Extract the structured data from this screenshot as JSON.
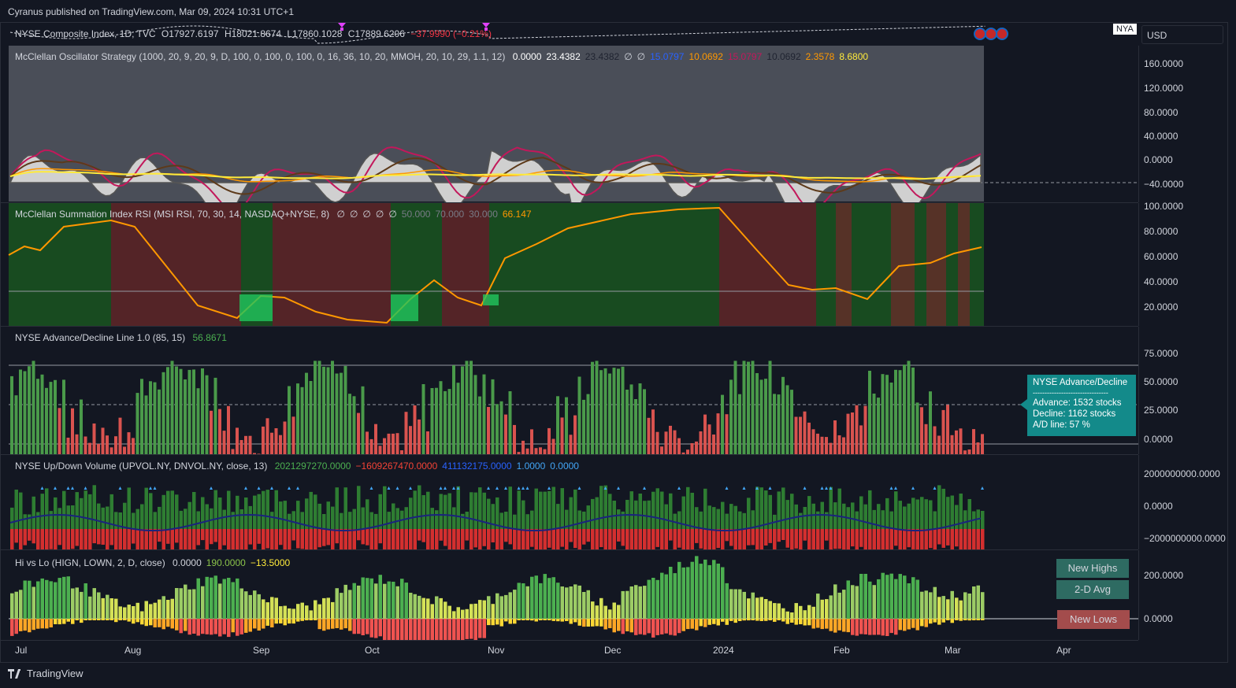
{
  "publisher": "Cyranus published on TradingView.com, Mar 09, 2024 10:31 UTC+1",
  "symbol_badge": "NYA",
  "currency": "USD",
  "main_legend": {
    "title": "NYSE Composite Index, 1D, TVC",
    "o": "O17927.6197",
    "h": "H18021.8674",
    "l": "L17860.1028",
    "c": "C17889.6206",
    "change": "−37.9990 (−0.21%)"
  },
  "panes": {
    "osc": {
      "label": "McClellan Oscillator Strategy (1000, 20, 9, 20, 9, D, 100, 0, 100, 0, 100, 0, 16, 36, 10, 20, MMOH, 20, 10, 29, 1.1, 12)",
      "values": [
        {
          "text": "0.0000",
          "color": "#ffffff"
        },
        {
          "text": "23.4382",
          "color": "#ffffff"
        },
        {
          "text": "23.4382",
          "color": "#1f2330"
        },
        {
          "text": "∅",
          "color": "#d1d4dc"
        },
        {
          "text": "∅",
          "color": "#d1d4dc"
        },
        {
          "text": "15.0797",
          "color": "#2962ff"
        },
        {
          "text": "10.0692",
          "color": "#ff9800"
        },
        {
          "text": "15.0797",
          "color": "#c2185b"
        },
        {
          "text": "10.0692",
          "color": "#1f2330"
        },
        {
          "text": "2.3578",
          "color": "#ff9800"
        },
        {
          "text": "8.6800",
          "color": "#ffeb3b"
        }
      ],
      "ticks": [
        "160.0000",
        "120.0000",
        "80.0000",
        "40.0000",
        "0.0000",
        "−40.0000"
      ]
    },
    "rsi": {
      "label": "McClellan Summation Index RSI (MSI RSI, 70, 30, 14, NASDAQ+NYSE, 8)",
      "values": [
        {
          "text": "∅",
          "color": "#d1d4dc"
        },
        {
          "text": "∅",
          "color": "#d1d4dc"
        },
        {
          "text": "∅",
          "color": "#d1d4dc"
        },
        {
          "text": "∅",
          "color": "#d1d4dc"
        },
        {
          "text": "∅",
          "color": "#d1d4dc"
        },
        {
          "text": "50.000",
          "color": "#787b86"
        },
        {
          "text": "70.000",
          "color": "#787b86"
        },
        {
          "text": "30.000",
          "color": "#787b86"
        },
        {
          "text": "66.147",
          "color": "#ff9800"
        }
      ],
      "ticks": [
        "100.0000",
        "80.0000",
        "60.0000",
        "40.0000",
        "20.0000"
      ]
    },
    "ad": {
      "label": "NYSE Advance/Decline Line 1.0 (85, 15)",
      "values": [
        {
          "text": "56.8671",
          "color": "#4caf50"
        }
      ],
      "ticks": [
        "75.0000",
        "50.0000",
        "25.0000",
        "0.0000"
      ],
      "tooltip": {
        "title": "NYSE Advance/Decline",
        "sep": "--------------------------------",
        "advance": "Advance: 1532 stocks",
        "decline": "Decline: 1162 stocks",
        "line": "A/D line: 57 %"
      }
    },
    "vol": {
      "label": "NYSE Up/Down Volume (UPVOL.NY, DNVOL.NY, close, 13)",
      "values": [
        {
          "text": "2021297270.0000",
          "color": "#4caf50"
        },
        {
          "text": "−1609267470.0000",
          "color": "#f44336"
        },
        {
          "text": "411132175.0000",
          "color": "#2962ff"
        },
        {
          "text": "1.0000",
          "color": "#42a5f5"
        },
        {
          "text": "0.0000",
          "color": "#42a5f5"
        }
      ],
      "ticks": [
        "2000000000.0000",
        "0.0000",
        "−2000000000.0000"
      ]
    },
    "hilo": {
      "label": "Hi vs Lo (HIGN, LOWN, 2, D, close)",
      "values": [
        {
          "text": "0.0000",
          "color": "#d1d4dc"
        },
        {
          "text": "190.0000",
          "color": "#8bc34a"
        },
        {
          "text": "−13.5000",
          "color": "#ffeb3b"
        }
      ],
      "ticks": [
        "200.0000",
        "0.0000"
      ],
      "boxes": {
        "new_highs": "New Highs",
        "avg": "2-D Avg",
        "new_lows": "New Lows"
      }
    }
  },
  "x_axis": [
    "Jul",
    "Aug",
    "Sep",
    "Oct",
    "Nov",
    "Dec",
    "2024",
    "Feb",
    "Mar",
    "Apr"
  ],
  "footer": "TradingView"
}
